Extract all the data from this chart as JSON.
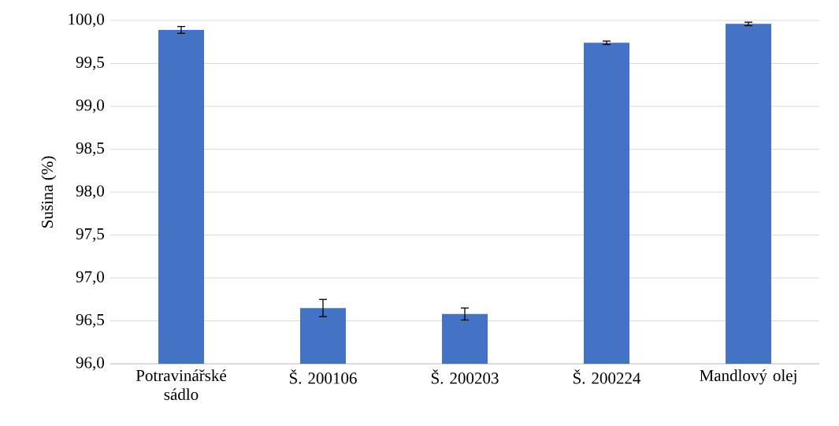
{
  "chart_data": {
    "type": "bar",
    "ylabel": "Sušina (%)",
    "categories": [
      "Potravinářské sádlo",
      "Š. 200106",
      "Š. 200203",
      "Š. 200224",
      "Mandlový olej"
    ],
    "values": [
      99.89,
      96.65,
      96.58,
      99.74,
      99.96
    ],
    "errors": [
      0.04,
      0.1,
      0.07,
      0.02,
      0.02
    ],
    "color": "#4472c4",
    "ylim": [
      96,
      100
    ],
    "yticks": [
      {
        "value": 96,
        "label": "96,0"
      },
      {
        "value": 96.5,
        "label": "96,5"
      },
      {
        "value": 97,
        "label": "97,0"
      },
      {
        "value": 97.5,
        "label": "97,5"
      },
      {
        "value": 98,
        "label": "98,0"
      },
      {
        "value": 98.5,
        "label": "98,5"
      },
      {
        "value": 99,
        "label": "99,0"
      },
      {
        "value": 99.5,
        "label": "99,5"
      },
      {
        "value": 100,
        "label": "100,0"
      }
    ],
    "grid": "y"
  }
}
